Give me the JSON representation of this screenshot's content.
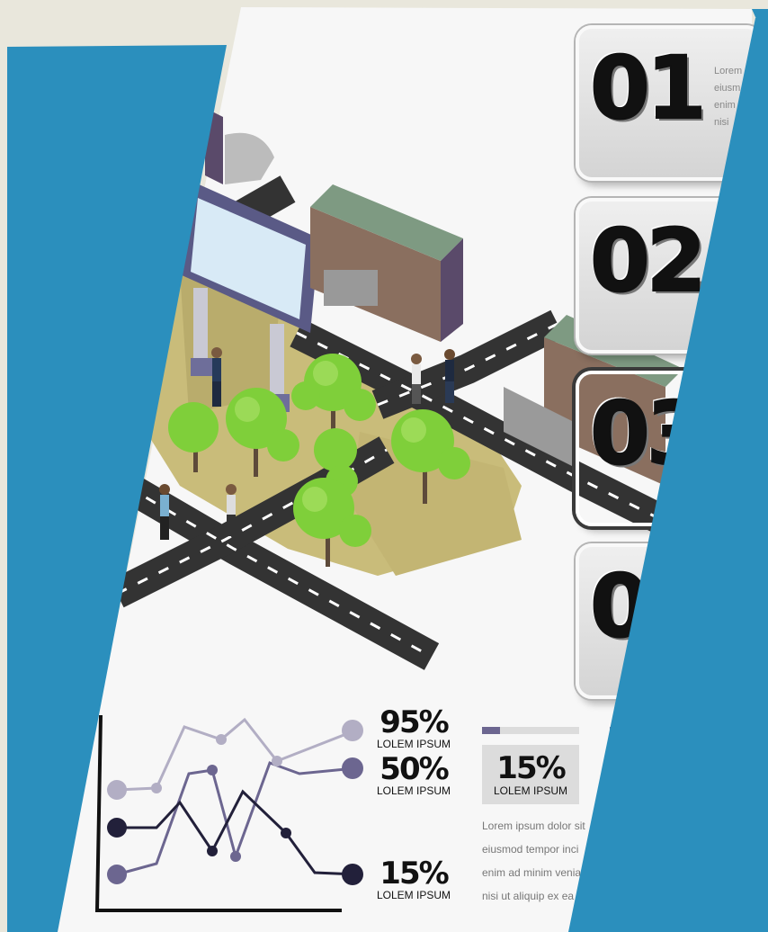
{
  "cards": [
    {
      "number": "01",
      "text_lines": [
        "Lorem",
        "eiusm",
        "enim",
        "nisi"
      ]
    },
    {
      "number": "02"
    },
    {
      "number": "03"
    },
    {
      "number": "0"
    }
  ],
  "line_stats": [
    {
      "value": "95%",
      "label": "LOLEM IPSUM"
    },
    {
      "value": "50%",
      "label": "LOLEM IPSUM"
    },
    {
      "value": "15%",
      "label": "LOLEM IPSUM"
    }
  ],
  "box_stat": {
    "value": "15%",
    "label": "LOLEM IPSUM"
  },
  "body_text": [
    "Lorem ipsum dolor sit",
    "eiusmod tempor inci",
    "enim ad minim venia",
    "nisi ut aliquip ex ea"
  ],
  "colors": {
    "accent_blue": "#2b8fbd",
    "background": "#e9e7dc",
    "poster": "#f7f7f7"
  },
  "icons": [
    "billboard-icon",
    "house-icon",
    "tree-icon",
    "person-icon",
    "road-icon"
  ]
}
